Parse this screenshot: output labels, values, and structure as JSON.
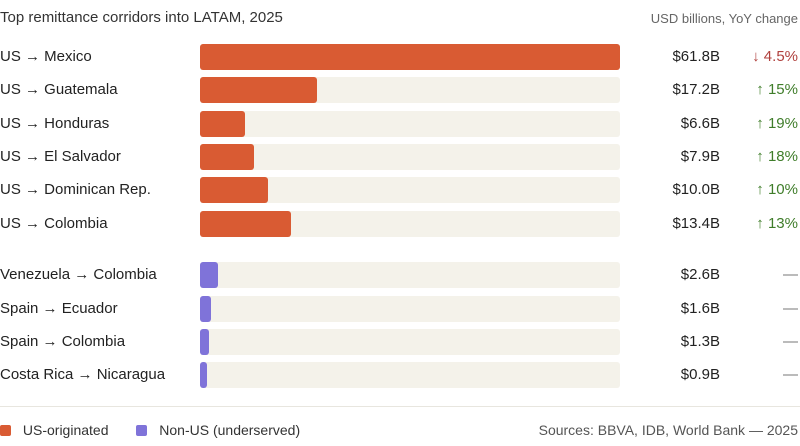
{
  "chart_data": {
    "type": "bar",
    "title": "Top remittance corridors into LATAM, 2025",
    "units_note": "USD billions, YoY change",
    "xlim": [
      0,
      61.8
    ],
    "groups": [
      {
        "name": "US-originated",
        "color": "#d95b33",
        "rows": [
          {
            "label": "US → Mexico",
            "value": 61.8,
            "value_text": "$61.8B",
            "change_text": "↓ 4.5%",
            "direction": "down"
          },
          {
            "label": "US → Guatemala",
            "value": 17.2,
            "value_text": "$17.2B",
            "change_text": "↑ 15%",
            "direction": "up"
          },
          {
            "label": "US → Honduras",
            "value": 6.6,
            "value_text": "$6.6B",
            "change_text": "↑ 19%",
            "direction": "up"
          },
          {
            "label": "US → El Salvador",
            "value": 7.9,
            "value_text": "$7.9B",
            "change_text": "↑ 18%",
            "direction": "up"
          },
          {
            "label": "US → Dominican Rep.",
            "value": 10.0,
            "value_text": "$10.0B",
            "change_text": "↑ 10%",
            "direction": "up"
          },
          {
            "label": "US → Colombia",
            "value": 13.4,
            "value_text": "$13.4B",
            "change_text": "↑ 13%",
            "direction": "up"
          }
        ]
      },
      {
        "name": "Non-US (underserved)",
        "color": "#7f73d9",
        "rows": [
          {
            "label": "Venezuela → Colombia",
            "value": 2.6,
            "value_text": "$2.6B",
            "change_text": "—",
            "direction": "flat"
          },
          {
            "label": "Spain → Ecuador",
            "value": 1.6,
            "value_text": "$1.6B",
            "change_text": "—",
            "direction": "flat"
          },
          {
            "label": "Spain → Colombia",
            "value": 1.3,
            "value_text": "$1.3B",
            "change_text": "—",
            "direction": "flat"
          },
          {
            "label": "Costa Rica → Nicaragua",
            "value": 0.9,
            "value_text": "$0.9B",
            "change_text": "—",
            "direction": "flat"
          }
        ]
      }
    ],
    "legend": [
      {
        "label": "US-originated",
        "color": "#d95b33"
      },
      {
        "label": "Non-US (underserved)",
        "color": "#7f73d9"
      }
    ],
    "source": "Sources: BBVA, IDB, World Bank — 2025"
  },
  "colors": {
    "track": "#f4f2ea",
    "up": "#3f7d2a",
    "down": "#b0413e",
    "flat": "#777777"
  }
}
